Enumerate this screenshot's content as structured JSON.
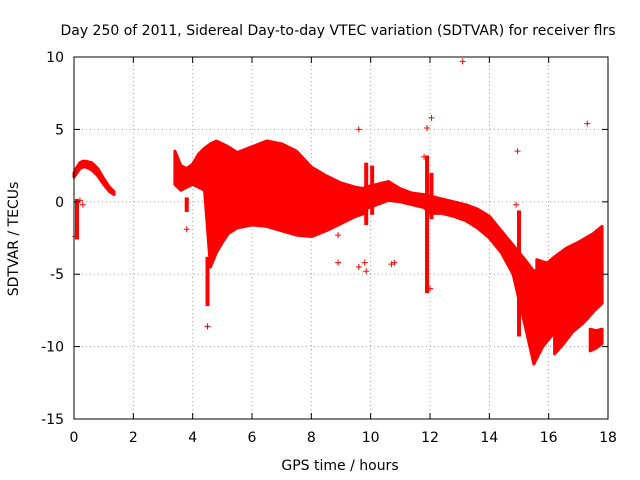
{
  "chart_data": {
    "type": "scatter",
    "title": "Day 250 of 2011, Sidereal Day-to-day VTEC variation (SDTVAR) for receiver flrs",
    "xlabel": "GPS time / hours",
    "ylabel": "SDTVAR / TECUs",
    "xlim": [
      0,
      18
    ],
    "ylim": [
      -15,
      10
    ],
    "xticks": [
      0,
      2,
      4,
      6,
      8,
      10,
      12,
      14,
      16,
      18
    ],
    "yticks": [
      -15,
      -10,
      -5,
      0,
      5,
      10
    ],
    "grid": true,
    "marker": "+",
    "series_color": "#ff0000",
    "bands": [
      {
        "x": [
          0.0,
          0.1,
          0.2,
          0.3,
          0.4,
          0.6,
          0.8,
          1.0,
          1.2,
          1.35
        ],
        "upper": [
          2.0,
          2.4,
          2.7,
          2.8,
          2.8,
          2.7,
          2.3,
          1.6,
          1.0,
          0.7
        ],
        "lower": [
          1.7,
          2.0,
          2.3,
          2.4,
          2.4,
          2.2,
          1.8,
          1.2,
          0.7,
          0.5
        ]
      },
      {
        "x": [
          3.4,
          3.6,
          3.8,
          4.0,
          4.2,
          4.4,
          4.6,
          4.8,
          5.0,
          5.2,
          5.5,
          6.0,
          6.5,
          7.0,
          7.5,
          8.0,
          8.5,
          9.0,
          9.5,
          9.8
        ],
        "upper": [
          3.5,
          2.5,
          2.3,
          2.6,
          3.3,
          3.7,
          4.0,
          4.2,
          4.0,
          3.8,
          3.4,
          3.8,
          4.2,
          4.0,
          3.5,
          2.4,
          1.8,
          1.3,
          1.0,
          0.9
        ],
        "lower": [
          1.2,
          0.8,
          1.0,
          1.2,
          1.0,
          0.8,
          -4.5,
          -3.5,
          -2.8,
          -2.2,
          -1.8,
          -1.6,
          -1.7,
          -2.0,
          -2.3,
          -2.4,
          -2.0,
          -1.5,
          -1.0,
          -0.8
        ]
      },
      {
        "x": [
          9.8,
          10.2,
          10.6,
          11.0,
          11.4,
          11.8,
          12.0,
          12.4,
          12.8,
          13.2,
          13.6,
          14.0,
          14.4,
          14.8,
          15.2,
          15.5,
          15.8,
          16.2,
          16.6,
          17.0,
          17.5,
          17.8
        ],
        "upper": [
          1.0,
          1.2,
          1.4,
          0.9,
          0.6,
          0.5,
          0.4,
          0.2,
          0.0,
          -0.2,
          -0.5,
          -1.0,
          -2.0,
          -3.0,
          -4.0,
          -4.8,
          -4.5,
          -3.8,
          -3.2,
          -2.8,
          -2.2,
          -1.7
        ],
        "lower": [
          -0.5,
          -0.2,
          0.1,
          0.0,
          -0.2,
          -0.4,
          -0.8,
          -0.8,
          -1.0,
          -1.3,
          -1.8,
          -2.5,
          -3.5,
          -5.0,
          -8.5,
          -11.2,
          -10.0,
          -9.0,
          -8.0,
          -7.0,
          -6.0,
          -5.5
        ]
      },
      {
        "x": [
          15.6,
          15.9,
          16.2,
          16.6,
          17.0,
          17.4,
          17.8
        ],
        "upper": [
          -4.0,
          -4.2,
          -4.2,
          -4.3,
          -4.3,
          -4.3,
          -4.3
        ],
        "lower": [
          -8.0,
          -7.5,
          -7.0,
          -7.0,
          -7.0,
          -7.0,
          -7.0
        ]
      },
      {
        "x": [
          16.2,
          16.5,
          16.8,
          17.2,
          17.5,
          17.8
        ],
        "upper": [
          -8.0,
          -7.0,
          -6.5,
          -6.0,
          -5.6,
          -5.3
        ],
        "lower": [
          -10.5,
          -9.8,
          -9.0,
          -8.3,
          -7.6,
          -7.0
        ]
      },
      {
        "x": [
          17.4,
          17.6,
          17.8
        ],
        "upper": [
          -8.8,
          -8.9,
          -8.8
        ],
        "lower": [
          -10.3,
          -10.1,
          -9.8
        ]
      }
    ],
    "vertical_streaks": [
      {
        "x": 0.1,
        "ymin": -2.6,
        "ymax": 0.2
      },
      {
        "x": 4.5,
        "ymin": -7.2,
        "ymax": -3.8
      },
      {
        "x": 3.8,
        "ymin": -0.7,
        "ymax": 0.3
      },
      {
        "x": 9.85,
        "ymin": -1.6,
        "ymax": 2.7
      },
      {
        "x": 10.05,
        "ymin": -0.9,
        "ymax": 2.5
      },
      {
        "x": 11.9,
        "ymin": -6.3,
        "ymax": 3.2
      },
      {
        "x": 12.05,
        "ymin": -1.2,
        "ymax": 2.0
      },
      {
        "x": 15.0,
        "ymin": -9.3,
        "ymax": -0.6
      },
      {
        "x": 16.7,
        "ymin": -7.5,
        "ymax": -4.0
      }
    ],
    "points": [
      {
        "x": 13.1,
        "y": 9.7
      },
      {
        "x": 9.6,
        "y": 5.0
      },
      {
        "x": 11.9,
        "y": 5.1
      },
      {
        "x": 12.05,
        "y": 5.8
      },
      {
        "x": 17.3,
        "y": 5.4
      },
      {
        "x": 14.95,
        "y": 3.5
      },
      {
        "x": 11.8,
        "y": 3.1
      },
      {
        "x": 3.8,
        "y": -1.9
      },
      {
        "x": 4.5,
        "y": -8.6
      },
      {
        "x": 8.9,
        "y": -4.2
      },
      {
        "x": 9.6,
        "y": -4.5
      },
      {
        "x": 9.8,
        "y": -4.2
      },
      {
        "x": 10.8,
        "y": -4.2
      },
      {
        "x": 10.7,
        "y": -4.3
      },
      {
        "x": 8.9,
        "y": -2.3
      },
      {
        "x": 9.85,
        "y": -4.8
      },
      {
        "x": 0.05,
        "y": -2.4
      },
      {
        "x": 0.2,
        "y": 0.1
      },
      {
        "x": 0.3,
        "y": -0.2
      },
      {
        "x": 12.0,
        "y": -6.0
      },
      {
        "x": 14.9,
        "y": -0.2
      }
    ]
  }
}
